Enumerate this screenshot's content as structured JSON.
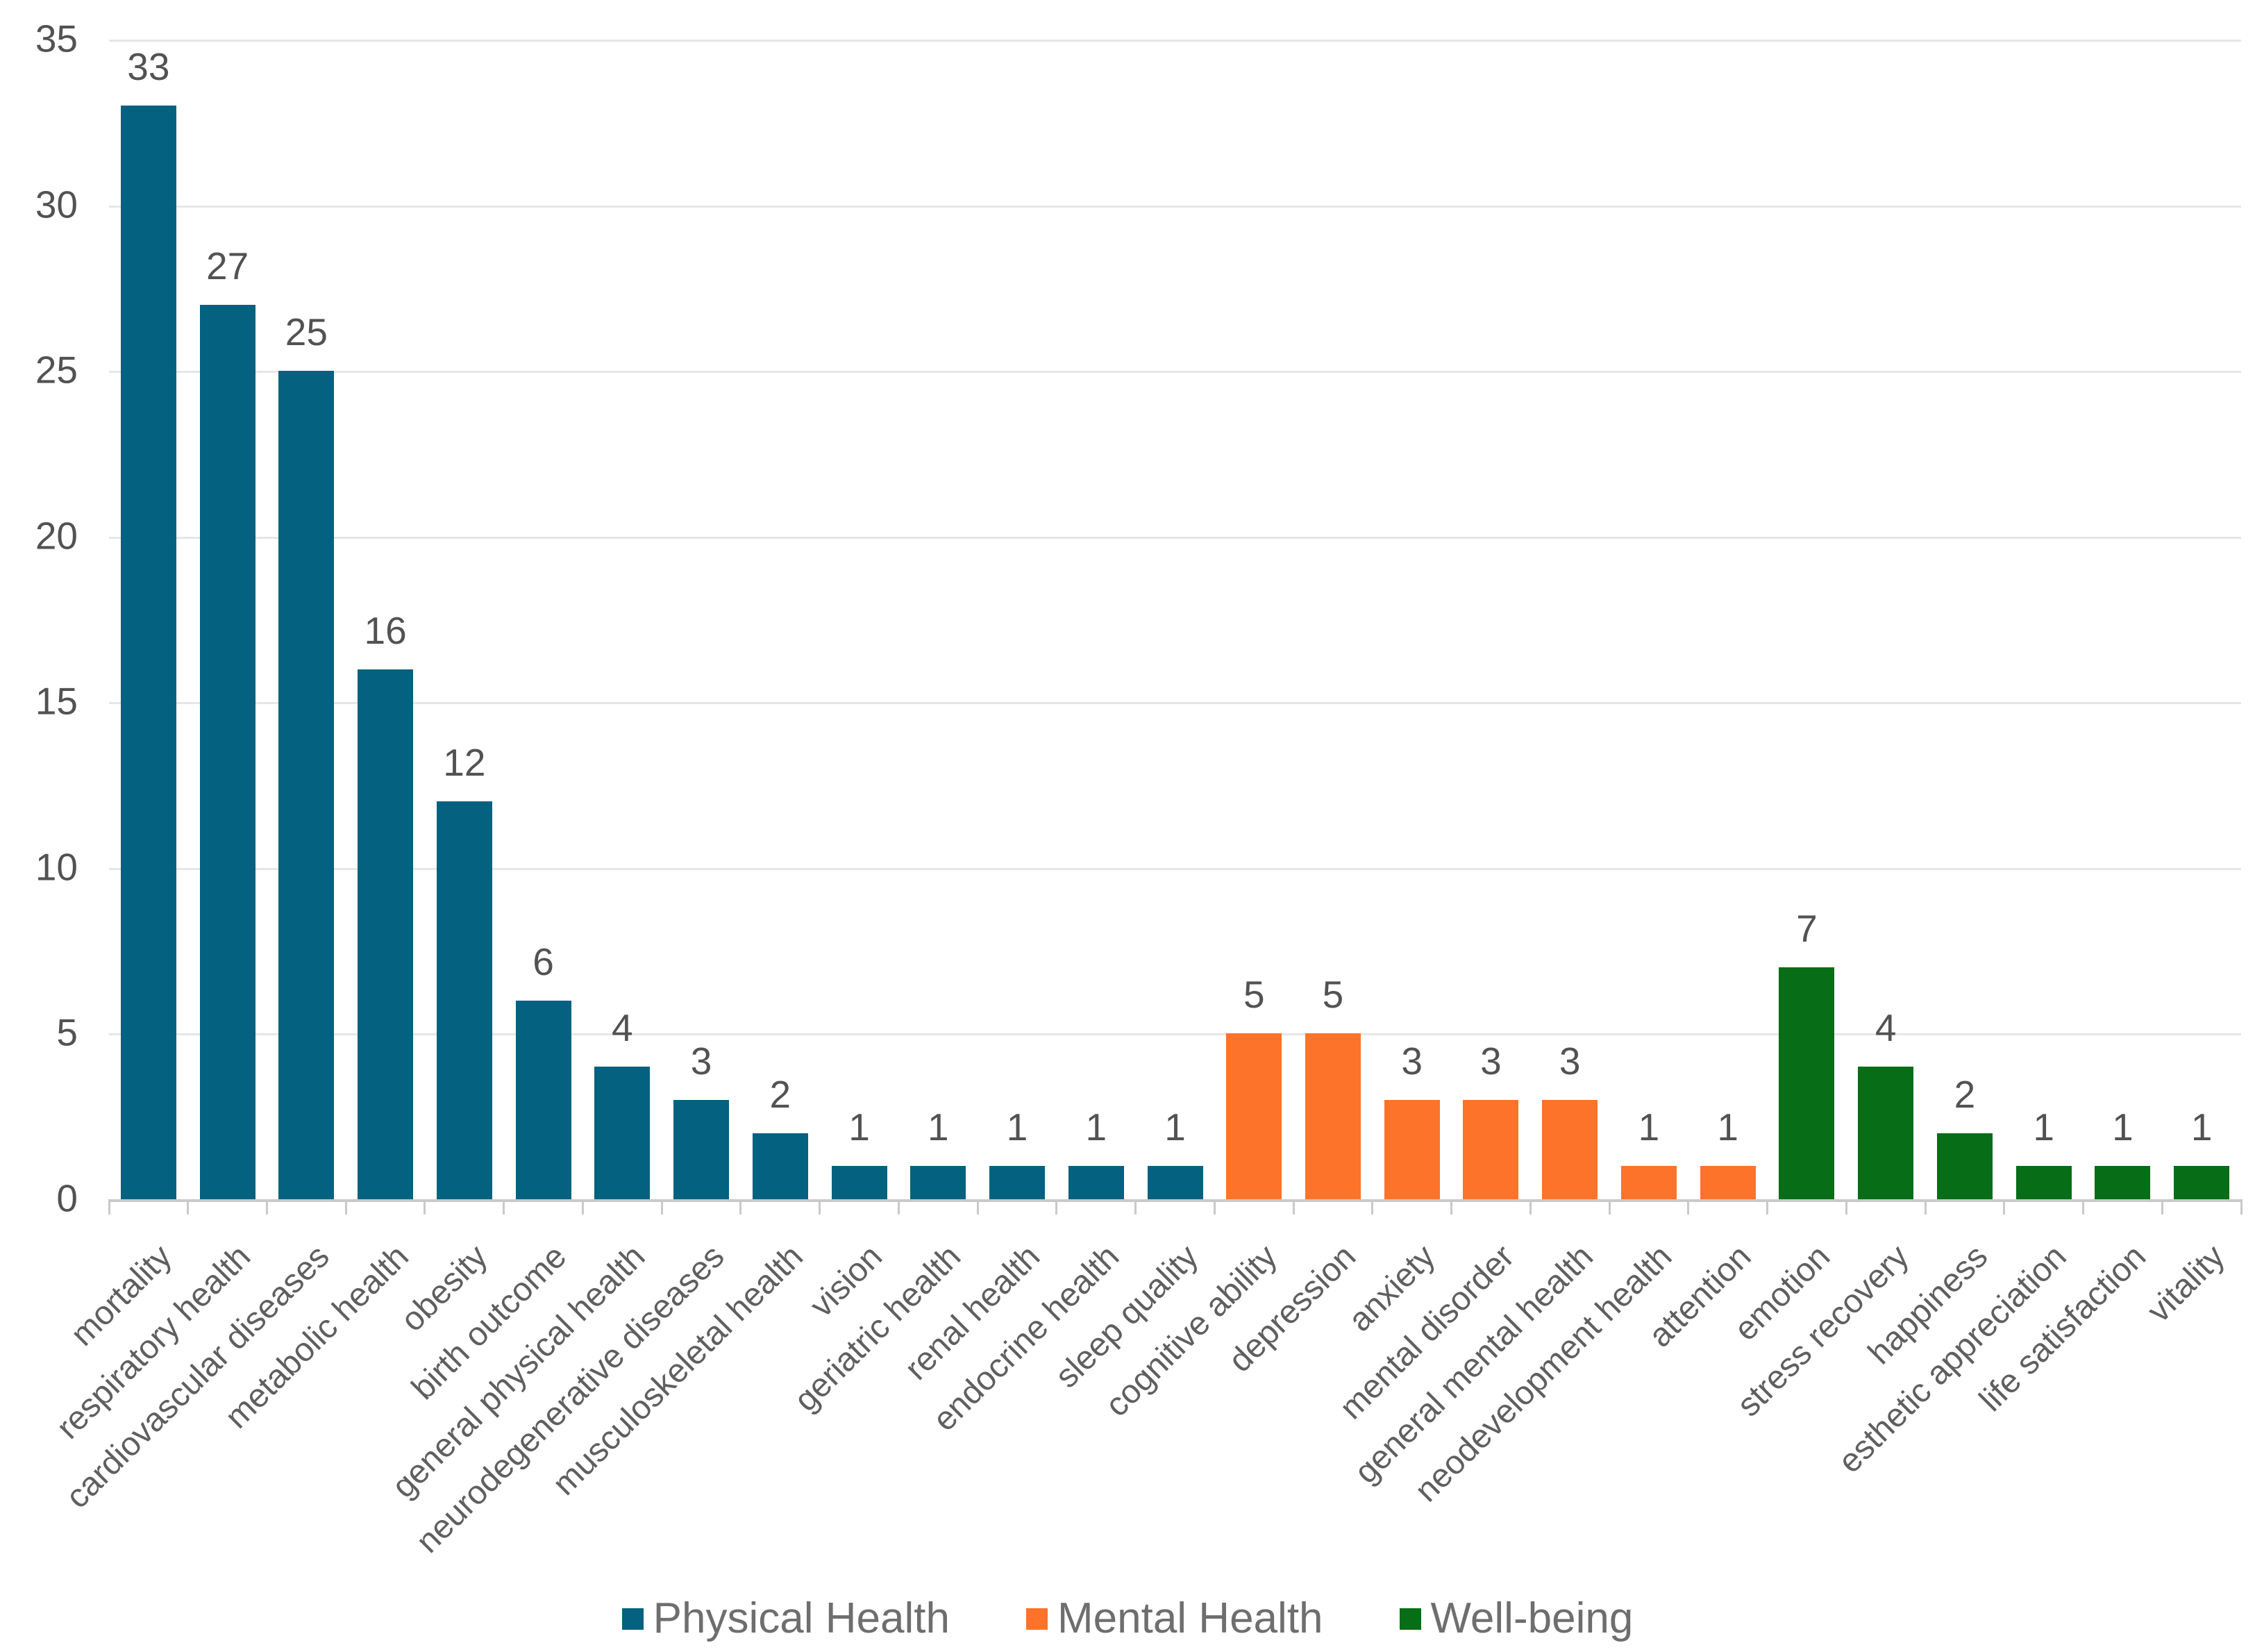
{
  "chart_data": {
    "type": "bar",
    "title": "",
    "xlabel": "",
    "ylabel": "",
    "categories": [
      "mortality",
      "respiratory health",
      "cardiovascular diseases",
      "metabolic health",
      "obesity",
      "birth outcome",
      "general physical health",
      "neurodegenerative diseases",
      "musculoskeletal health",
      "vision",
      "geriatric health",
      "renal health",
      "endocrine health",
      "sleep quality",
      "cognitive ability",
      "depression",
      "anxiety",
      "mental disorder",
      "general mental health",
      "neodevelopment health",
      "attention",
      "emotion",
      "stress recovery",
      "happiness",
      "esthetic appreciation",
      "life satisfaction",
      "vitality"
    ],
    "values": [
      33,
      27,
      25,
      16,
      12,
      6,
      4,
      3,
      2,
      1,
      1,
      1,
      1,
      1,
      5,
      5,
      3,
      3,
      3,
      1,
      1,
      7,
      4,
      2,
      1,
      1,
      1
    ],
    "group_index": [
      0,
      0,
      0,
      0,
      0,
      0,
      0,
      0,
      0,
      0,
      0,
      0,
      0,
      0,
      1,
      1,
      1,
      1,
      1,
      1,
      1,
      2,
      2,
      2,
      2,
      2,
      2
    ],
    "groups": [
      {
        "name": "Physical Health",
        "color": "#04617f"
      },
      {
        "name": "Mental Health",
        "color": "#fd7329"
      },
      {
        "name": "Well-being",
        "color": "#076d17"
      }
    ],
    "ylim": [
      0,
      35
    ],
    "yticks": [
      0,
      5,
      10,
      15,
      20,
      25,
      30,
      35
    ],
    "grid": true,
    "bar_labels_visible": true,
    "legend_position": "bottom",
    "axis_line_color": "#c9c9c9",
    "gridline_color": "#e6e6e6",
    "label_text_color": "#525252",
    "category_text_color": "#5f5f5f",
    "legend_text_color": "#6e6e6e"
  }
}
